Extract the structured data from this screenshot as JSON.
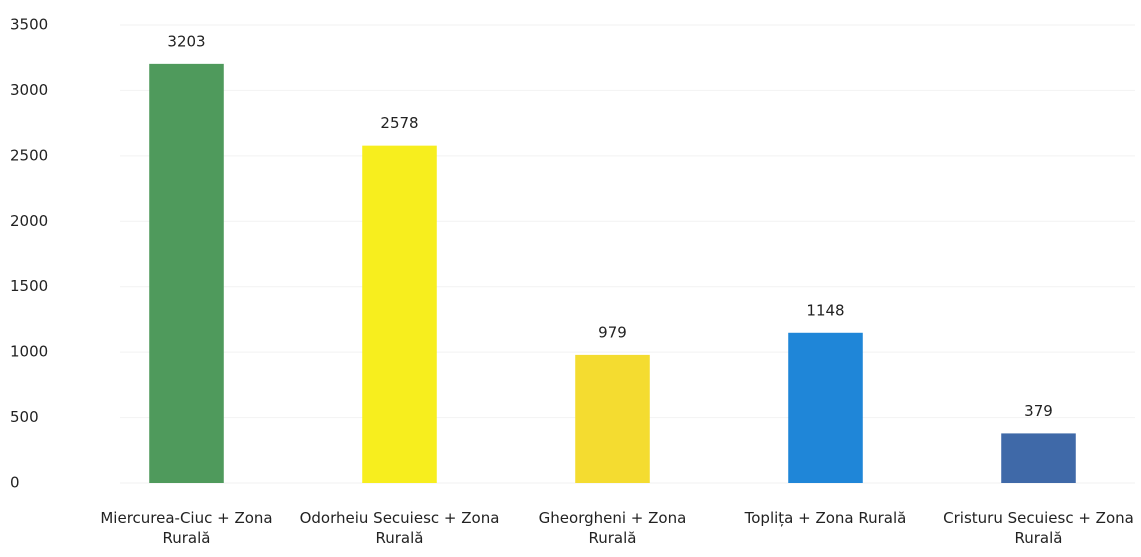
{
  "chart_data": {
    "type": "bar",
    "categories": [
      "Miercurea-Ciuc + Zona Rurală",
      "Odorheiu Secuiesc + Zona Rurală",
      "Gheorgheni + Zona Rurală",
      "Toplița + Zona Rurală",
      "Cristuru Secuiesc + Zona Rurală"
    ],
    "values": [
      3203,
      2578,
      979,
      1148,
      379
    ],
    "colors": [
      "#4f9a5c",
      "#f7ee1e",
      "#f4dc30",
      "#1f86d8",
      "#3f69a8"
    ],
    "ylim": [
      0,
      3500
    ],
    "yticks": [
      0,
      500,
      1000,
      1500,
      2000,
      2500,
      3000,
      3500
    ],
    "grid": true
  }
}
